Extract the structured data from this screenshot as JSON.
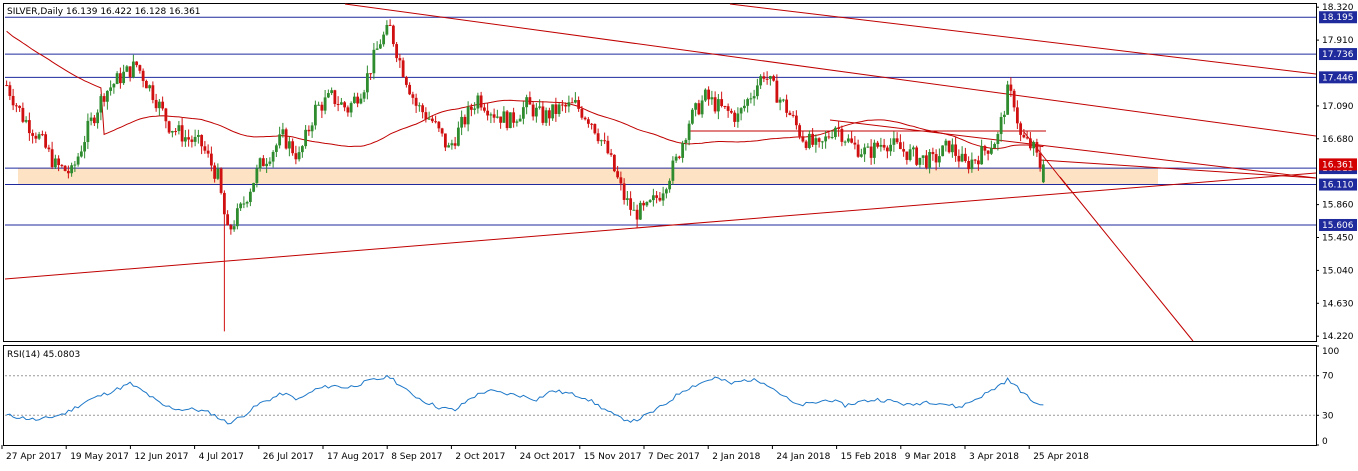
{
  "header": {
    "symbol_line": "SILVER,Daily  16.139 16.422 16.128 16.361"
  },
  "rsi_panel": {
    "label": "RSI(14) 45.0803",
    "levels": [
      70,
      30
    ],
    "ticks": [
      "100",
      "70",
      "30",
      "0"
    ]
  },
  "colors": {
    "bull": "#2e8b2e",
    "bear": "#d01010",
    "trend": "#c00000",
    "level": "#1f2a9c",
    "zone": "#fde3c4",
    "rsi": "#1e78c8",
    "badge": "#1f2a9c",
    "badge_red": "#d20000"
  },
  "chart_data": [
    {
      "type": "candlestick",
      "title": "SILVER,Daily",
      "ohlc_last": {
        "open": 16.139,
        "high": 16.422,
        "low": 16.128,
        "close": 16.361
      },
      "ylim": [
        14.16,
        18.36
      ],
      "y_ticks": [
        "18.320",
        "17.910",
        "17.090",
        "16.680",
        "15.860",
        "15.450",
        "15.040",
        "14.630",
        "14.220"
      ],
      "x_tick_labels": [
        "27 Apr 2017",
        "19 May 2017",
        "12 Jun 2017",
        "4 Jul 2017",
        "26 Jul 2017",
        "17 Aug 2017",
        "8 Sep 2017",
        "2 Oct 2017",
        "24 Oct 2017",
        "15 Nov 2017",
        "7 Dec 2017",
        "2 Jan 2018",
        "24 Jan 2018",
        "15 Feb 2018",
        "9 Mar 2018",
        "3 Apr 2018",
        "25 Apr 2018"
      ],
      "key_points": [
        [
          0,
          17.35
        ],
        [
          5,
          16.95
        ],
        [
          10,
          16.7
        ],
        [
          15,
          16.35
        ],
        [
          20,
          16.25
        ],
        [
          25,
          16.8
        ],
        [
          30,
          17.25
        ],
        [
          35,
          17.45
        ],
        [
          40,
          17.6
        ],
        [
          45,
          17.25
        ],
        [
          50,
          16.85
        ],
        [
          55,
          16.7
        ],
        [
          60,
          16.6
        ],
        [
          65,
          16.2
        ],
        [
          68,
          15.5
        ],
        [
          72,
          15.8
        ],
        [
          78,
          16.35
        ],
        [
          85,
          16.7
        ],
        [
          90,
          16.45
        ],
        [
          95,
          17.05
        ],
        [
          100,
          17.2
        ],
        [
          105,
          17.05
        ],
        [
          110,
          17.35
        ],
        [
          115,
          17.9
        ],
        [
          118,
          18.05
        ],
        [
          121,
          17.65
        ],
        [
          126,
          17.1
        ],
        [
          131,
          16.9
        ],
        [
          136,
          16.55
        ],
        [
          140,
          16.85
        ],
        [
          145,
          17.2
        ],
        [
          150,
          17.0
        ],
        [
          155,
          16.9
        ],
        [
          160,
          17.1
        ],
        [
          165,
          16.95
        ],
        [
          170,
          17.05
        ],
        [
          175,
          17.1
        ],
        [
          180,
          16.9
        ],
        [
          185,
          16.5
        ],
        [
          190,
          15.95
        ],
        [
          193,
          15.75
        ],
        [
          197,
          15.8
        ],
        [
          201,
          16.0
        ],
        [
          206,
          16.4
        ],
        [
          210,
          16.9
        ],
        [
          215,
          17.2
        ],
        [
          220,
          17.05
        ],
        [
          225,
          16.95
        ],
        [
          230,
          17.3
        ],
        [
          233,
          17.5
        ],
        [
          236,
          17.3
        ],
        [
          240,
          17.05
        ],
        [
          245,
          16.7
        ],
        [
          250,
          16.55
        ],
        [
          255,
          16.85
        ],
        [
          260,
          16.6
        ],
        [
          265,
          16.5
        ],
        [
          270,
          16.65
        ],
        [
          275,
          16.55
        ],
        [
          280,
          16.45
        ],
        [
          285,
          16.4
        ],
        [
          290,
          16.6
        ],
        [
          295,
          16.35
        ],
        [
          300,
          16.5
        ],
        [
          305,
          16.7
        ],
        [
          308,
          17.25
        ],
        [
          310,
          17.15
        ],
        [
          312,
          16.7
        ],
        [
          316,
          16.55
        ],
        [
          319,
          16.25
        ],
        [
          320,
          16.3
        ]
      ],
      "levels": [
        18.195,
        17.736,
        17.446,
        16.315,
        16.11,
        15.606
      ],
      "level_badges": [
        "18.195",
        "17.736",
        "17.446",
        "16.315",
        "16.110",
        "15.606"
      ],
      "current_price_label": "16.361",
      "zone": [
        16.11,
        16.315
      ],
      "bars_total": 320
    },
    {
      "type": "line",
      "title": "RSI(14) 45.0803",
      "ylim": [
        0,
        100
      ],
      "key_points": [
        [
          0,
          30
        ],
        [
          10,
          25
        ],
        [
          18,
          32
        ],
        [
          25,
          45
        ],
        [
          33,
          55
        ],
        [
          38,
          62
        ],
        [
          43,
          52
        ],
        [
          48,
          40
        ],
        [
          53,
          36
        ],
        [
          58,
          36
        ],
        [
          63,
          32
        ],
        [
          68,
          22
        ],
        [
          72,
          28
        ],
        [
          78,
          42
        ],
        [
          85,
          52
        ],
        [
          90,
          46
        ],
        [
          95,
          56
        ],
        [
          100,
          60
        ],
        [
          105,
          58
        ],
        [
          112,
          65
        ],
        [
          118,
          69
        ],
        [
          123,
          55
        ],
        [
          128,
          45
        ],
        [
          133,
          38
        ],
        [
          138,
          35
        ],
        [
          143,
          48
        ],
        [
          148,
          55
        ],
        [
          153,
          52
        ],
        [
          158,
          50
        ],
        [
          163,
          46
        ],
        [
          168,
          55
        ],
        [
          173,
          52
        ],
        [
          178,
          48
        ],
        [
          183,
          38
        ],
        [
          188,
          28
        ],
        [
          193,
          24
        ],
        [
          198,
          32
        ],
        [
          203,
          42
        ],
        [
          208,
          55
        ],
        [
          213,
          62
        ],
        [
          218,
          68
        ],
        [
          223,
          62
        ],
        [
          228,
          66
        ],
        [
          233,
          64
        ],
        [
          238,
          52
        ],
        [
          243,
          40
        ],
        [
          248,
          42
        ],
        [
          253,
          46
        ],
        [
          258,
          40
        ],
        [
          263,
          44
        ],
        [
          268,
          46
        ],
        [
          273,
          44
        ],
        [
          278,
          40
        ],
        [
          283,
          44
        ],
        [
          288,
          42
        ],
        [
          293,
          38
        ],
        [
          298,
          46
        ],
        [
          303,
          55
        ],
        [
          308,
          66
        ],
        [
          311,
          58
        ],
        [
          315,
          46
        ],
        [
          318,
          40
        ],
        [
          320,
          45
        ]
      ]
    }
  ]
}
